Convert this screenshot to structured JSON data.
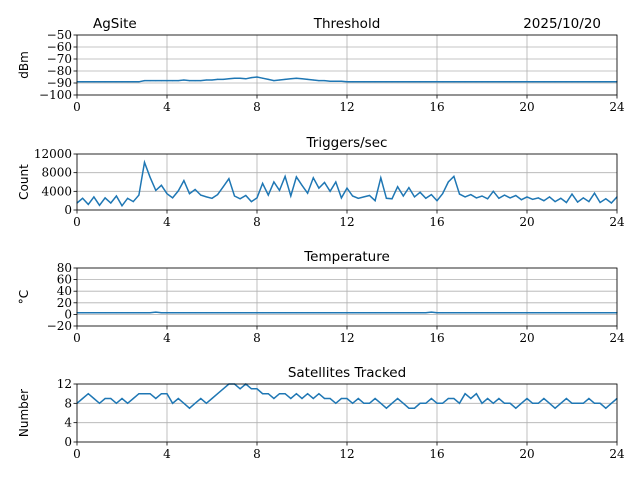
{
  "header": {
    "site": "AgSite",
    "date": "2025/10/20"
  },
  "line_color": "#1f77b4",
  "chart_data": [
    {
      "type": "line",
      "title": "Threshold",
      "ylabel": "dBm",
      "xlim": [
        0,
        24
      ],
      "ylim": [
        -100,
        -50
      ],
      "xticks": [
        "0",
        "4",
        "8",
        "12",
        "16",
        "20",
        "24"
      ],
      "yticks": [
        "−100",
        "−90",
        "−80",
        "−70",
        "−60",
        "−50"
      ],
      "ytick_values": [
        -100,
        -90,
        -80,
        -70,
        -60,
        -50
      ],
      "grid": true,
      "x_step": 0.25,
      "values": [
        -89,
        -89,
        -89,
        -89,
        -89,
        -89,
        -89,
        -89,
        -89,
        -89,
        -89,
        -89,
        -88,
        -88,
        -88,
        -88,
        -88,
        -88,
        -88,
        -87.5,
        -88,
        -88,
        -88,
        -87.5,
        -87.5,
        -87,
        -87,
        -86.5,
        -86,
        -86,
        -86.5,
        -85.5,
        -85,
        -86,
        -87,
        -88,
        -87.5,
        -87,
        -86.5,
        -86,
        -86.5,
        -87,
        -87.5,
        -88,
        -88,
        -88.5,
        -88.5,
        -88.5,
        -89,
        -89,
        -89,
        -89,
        -89,
        -89,
        -89,
        -89,
        -89,
        -89,
        -89,
        -89,
        -89,
        -89,
        -89,
        -89,
        -89,
        -89,
        -89,
        -89,
        -89,
        -89,
        -89,
        -89,
        -89,
        -89,
        -89,
        -89,
        -89,
        -89,
        -89,
        -89,
        -89,
        -89,
        -89,
        -89,
        -89,
        -89,
        -89,
        -89,
        -89,
        -89,
        -89,
        -89,
        -89,
        -89,
        -89,
        -89,
        -89
      ]
    },
    {
      "type": "line",
      "title": "Triggers/sec",
      "ylabel": "Count",
      "xlim": [
        0,
        24
      ],
      "ylim": [
        0,
        12000
      ],
      "xticks": [
        "0",
        "4",
        "8",
        "12",
        "16",
        "20",
        "24"
      ],
      "yticks": [
        "0",
        "4000",
        "8000",
        "12000"
      ],
      "ytick_values": [
        0,
        4000,
        8000,
        12000
      ],
      "grid": true,
      "x_step": 0.25,
      "values": [
        1500,
        2500,
        1200,
        2800,
        1000,
        2600,
        1500,
        3000,
        900,
        2500,
        1800,
        3200,
        10200,
        7000,
        4200,
        5300,
        3500,
        2600,
        4100,
        6300,
        3500,
        4400,
        3200,
        2800,
        2500,
        3300,
        5000,
        6700,
        3000,
        2400,
        3100,
        1800,
        2600,
        5700,
        3200,
        6000,
        4200,
        7200,
        3000,
        7100,
        5300,
        3600,
        6900,
        4700,
        5900,
        4000,
        6000,
        2600,
        4700,
        3000,
        2500,
        2800,
        3100,
        2000,
        6900,
        2500,
        2400,
        5000,
        3000,
        4800,
        2800,
        3800,
        2500,
        3300,
        2000,
        3500,
        6000,
        7200,
        3400,
        2800,
        3300,
        2600,
        3000,
        2400,
        4000,
        2500,
        3200,
        2600,
        3100,
        2200,
        2800,
        2300,
        2600,
        2000,
        2800,
        1800,
        2500,
        1600,
        3400,
        1700,
        2600,
        1800,
        3600,
        1600,
        2400,
        1500,
        2800
      ]
    },
    {
      "type": "line",
      "title": "Temperature",
      "ylabel": "°C",
      "xlim": [
        0,
        24
      ],
      "ylim": [
        -20,
        80
      ],
      "xticks": [
        "0",
        "4",
        "8",
        "12",
        "16",
        "20",
        "24"
      ],
      "yticks": [
        "−20",
        "0",
        "20",
        "40",
        "60",
        "80"
      ],
      "ytick_values": [
        -20,
        0,
        20,
        40,
        60,
        80
      ],
      "grid": true,
      "x_step": 0.25,
      "values": [
        3,
        3,
        3,
        3,
        3,
        3,
        3,
        3,
        3,
        3,
        3,
        3,
        3,
        3,
        4,
        3,
        3,
        3,
        3,
        3,
        3,
        3,
        3,
        3,
        3,
        3,
        3,
        3,
        3,
        3,
        3,
        3,
        3,
        3,
        3,
        3,
        3,
        3,
        3,
        3,
        3,
        3,
        3,
        3,
        3,
        3,
        3,
        3,
        3,
        3,
        3,
        3,
        3,
        3,
        3,
        3,
        3,
        3,
        3,
        3,
        3,
        3,
        3,
        4,
        3,
        3,
        3,
        3,
        3,
        3,
        3,
        3,
        3,
        3,
        3,
        3,
        3,
        3,
        3,
        3,
        3,
        3,
        3,
        3,
        3,
        3,
        3,
        3,
        3,
        3,
        3,
        3,
        3,
        3,
        3,
        3,
        3
      ]
    },
    {
      "type": "line",
      "title": "Satellites Tracked",
      "ylabel": "Number",
      "xlim": [
        0,
        24
      ],
      "ylim": [
        0,
        12
      ],
      "xticks": [
        "0",
        "4",
        "8",
        "12",
        "16",
        "20",
        "24"
      ],
      "yticks": [
        "0",
        "4",
        "8",
        "12"
      ],
      "ytick_values": [
        0,
        4,
        8,
        12
      ],
      "grid": true,
      "x_step": 0.25,
      "values": [
        8,
        9,
        10,
        9,
        8,
        9,
        9,
        8,
        9,
        8,
        9,
        10,
        10,
        10,
        9,
        10,
        10,
        8,
        9,
        8,
        7,
        8,
        9,
        8,
        9,
        10,
        11,
        12,
        12,
        11,
        12,
        11,
        11,
        10,
        10,
        9,
        10,
        10,
        9,
        10,
        9,
        10,
        9,
        10,
        9,
        9,
        8,
        9,
        9,
        8,
        9,
        8,
        8,
        9,
        8,
        7,
        8,
        9,
        8,
        7,
        7,
        8,
        8,
        9,
        8,
        8,
        9,
        9,
        8,
        10,
        9,
        10,
        8,
        9,
        8,
        9,
        8,
        8,
        7,
        8,
        9,
        8,
        8,
        9,
        8,
        7,
        8,
        9,
        8,
        8,
        8,
        9,
        8,
        8,
        7,
        8,
        9
      ]
    }
  ]
}
